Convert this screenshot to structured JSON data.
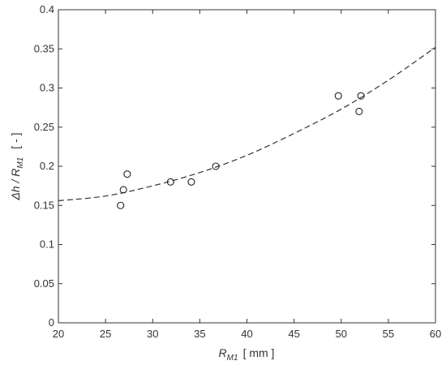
{
  "chart_data": {
    "type": "scatter",
    "xlim": [
      20,
      60
    ],
    "ylim": [
      0,
      0.4
    ],
    "x_ticks": [
      20,
      25,
      30,
      35,
      40,
      45,
      50,
      55,
      60
    ],
    "y_ticks": [
      0,
      0.05,
      0.1,
      0.15,
      0.2,
      0.25,
      0.3,
      0.35,
      0.4
    ],
    "x_tick_labels": [
      "20",
      "25",
      "30",
      "35",
      "40",
      "45",
      "50",
      "55",
      "60"
    ],
    "y_tick_labels": [
      "0",
      "0.05",
      "0.1",
      "0.15",
      "0.2",
      "0.25",
      "0.3",
      "0.35",
      "0.4"
    ],
    "xlabel": {
      "main": "R",
      "sub": "M1",
      "unit": "[ mm ]"
    },
    "ylabel": {
      "main": "Δh / R",
      "sub": "M1",
      "unit": "[ - ]"
    },
    "grid": false,
    "series": [
      {
        "type": "scatter",
        "marker": "circle-open",
        "points": [
          {
            "x": 26.6,
            "y": 0.15
          },
          {
            "x": 26.9,
            "y": 0.17
          },
          {
            "x": 27.3,
            "y": 0.19
          },
          {
            "x": 31.9,
            "y": 0.18
          },
          {
            "x": 34.1,
            "y": 0.18
          },
          {
            "x": 36.7,
            "y": 0.2
          },
          {
            "x": 49.7,
            "y": 0.29
          },
          {
            "x": 51.9,
            "y": 0.27
          },
          {
            "x": 52.1,
            "y": 0.29
          }
        ]
      },
      {
        "type": "line",
        "style": "dashed",
        "points": [
          {
            "x": 20,
            "y": 0.156
          },
          {
            "x": 25,
            "y": 0.162
          },
          {
            "x": 30,
            "y": 0.175
          },
          {
            "x": 35,
            "y": 0.192
          },
          {
            "x": 40,
            "y": 0.214
          },
          {
            "x": 45,
            "y": 0.242
          },
          {
            "x": 50,
            "y": 0.273
          },
          {
            "x": 55,
            "y": 0.31
          },
          {
            "x": 60,
            "y": 0.352
          }
        ]
      }
    ],
    "colors": {
      "axis": "#333333",
      "marker": "#222222",
      "fit_line": "#333333"
    }
  }
}
